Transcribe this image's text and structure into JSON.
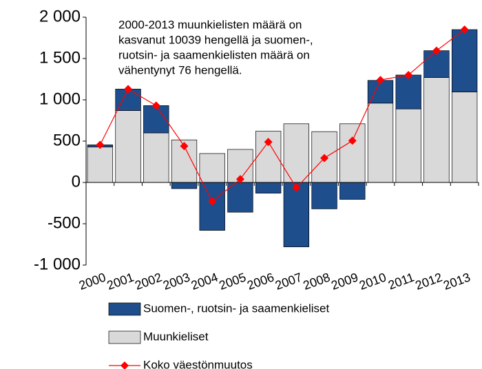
{
  "chart_data": {
    "type": "bar",
    "stacked": true,
    "annotation": [
      "2000-2013 muunkielisten määrä on",
      "kasvanut 10039 hengellä ja suomen-,",
      "ruotsin- ja saamenkielisten määrä on",
      "vähentynyt 76 hengellä."
    ],
    "categories": [
      "2000",
      "2001",
      "2002",
      "2003",
      "2004",
      "2005",
      "2006",
      "2007",
      "2008",
      "2009",
      "2010",
      "2011",
      "2012",
      "2013"
    ],
    "series": [
      {
        "name": "Suomen-, ruotsin- ja saamenkieliset",
        "color": "#1f4e8c",
        "values": [
          25,
          260,
          330,
          -75,
          -580,
          -360,
          -130,
          -780,
          -320,
          -205,
          275,
          410,
          325,
          755
        ]
      },
      {
        "name": "Muunkieliset",
        "color": "#d9d9d9",
        "values": [
          430,
          870,
          600,
          515,
          350,
          400,
          620,
          710,
          615,
          710,
          960,
          890,
          1270,
          1095
        ]
      },
      {
        "name": "Koko väestönmuutos",
        "type": "line",
        "color": "#ff0000",
        "values": [
          455,
          1130,
          930,
          440,
          -230,
          40,
          490,
          -65,
          295,
          505,
          1240,
          1300,
          1595,
          1850
        ]
      }
    ],
    "ylim": [
      -1000,
      2000
    ],
    "yticks": [
      {
        "value": -1000,
        "label": "-1 000"
      },
      -500,
      0,
      500,
      {
        "value": 1000,
        "label": "1 000"
      },
      {
        "value": 1500,
        "label": "1 500"
      },
      {
        "value": 2000,
        "label": "2 000"
      }
    ],
    "legend": "bottom"
  }
}
